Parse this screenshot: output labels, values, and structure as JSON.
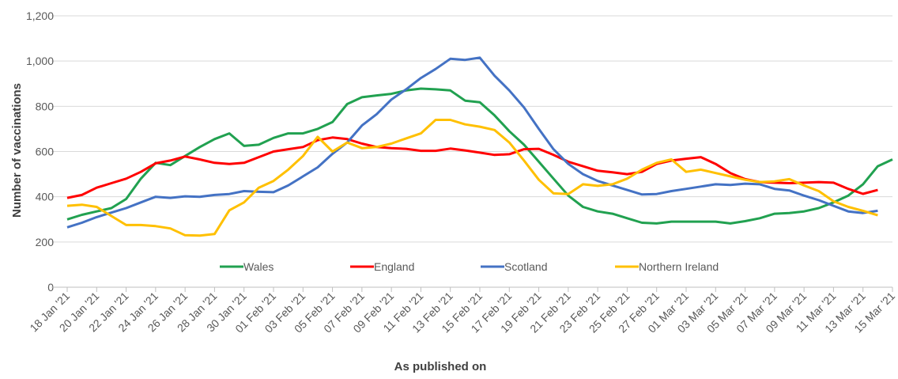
{
  "chart_data": {
    "type": "line",
    "y_label": "Number of vaccinations",
    "x_label": "As published  on",
    "categories": [
      "18 Jan '21",
      null,
      "20 Jan '21",
      null,
      "22 Jan '21",
      null,
      "24 Jan '21",
      null,
      "26 Jan '21",
      null,
      "28 Jan '21",
      null,
      "30 Jan '21",
      null,
      "01 Feb '21",
      null,
      "03 Feb '21",
      null,
      "05 Feb '21",
      null,
      "07 Feb '21",
      null,
      "09 Feb '21",
      null,
      "11 Feb '21",
      null,
      "13 Feb '21",
      null,
      "15 Feb '21",
      null,
      "17 Feb '21",
      null,
      "19 Feb '21",
      null,
      "21 Feb '21",
      null,
      "23 Feb '21",
      null,
      "25 Feb '21",
      null,
      "27 Feb '21",
      null,
      "01 Mar '21",
      null,
      "03 Mar '21",
      null,
      "05 Mar '21",
      null,
      "07 Mar '21",
      null,
      "09 Mar '21",
      null,
      "11 Mar '21",
      null,
      "13 Mar '21",
      null,
      "15 Mar '21"
    ],
    "series": [
      {
        "name": "Wales",
        "color": "#21a150",
        "values": [
          300,
          320,
          335,
          350,
          390,
          480,
          550,
          540,
          580,
          620,
          655,
          680,
          625,
          630,
          660,
          680,
          680,
          700,
          730,
          810,
          840,
          848,
          855,
          870,
          878,
          875,
          870,
          825,
          818,
          760,
          690,
          630,
          555,
          480,
          405,
          355,
          335,
          325,
          305,
          285,
          282,
          290,
          290,
          290,
          290,
          282,
          292,
          305,
          325,
          328,
          335,
          350,
          375,
          405,
          455,
          535,
          565
        ]
      },
      {
        "name": "England",
        "color": "#ff0000",
        "values": [
          395,
          408,
          440,
          460,
          480,
          510,
          548,
          560,
          578,
          565,
          550,
          545,
          550,
          575,
          600,
          610,
          620,
          650,
          662,
          655,
          635,
          620,
          615,
          612,
          603,
          603,
          613,
          605,
          595,
          585,
          588,
          610,
          612,
          585,
          555,
          535,
          515,
          508,
          500,
          510,
          545,
          560,
          568,
          575,
          545,
          505,
          478,
          465,
          462,
          460,
          462,
          465,
          462,
          435,
          413,
          430,
          null
        ]
      },
      {
        "name": "Scotland",
        "color": "#4472c4",
        "values": [
          265,
          285,
          310,
          330,
          350,
          375,
          400,
          395,
          402,
          400,
          408,
          412,
          425,
          422,
          420,
          450,
          490,
          530,
          590,
          640,
          715,
          765,
          830,
          875,
          925,
          965,
          1010,
          1005,
          1015,
          935,
          870,
          795,
          700,
          610,
          545,
          500,
          470,
          450,
          430,
          410,
          412,
          425,
          435,
          445,
          455,
          452,
          458,
          455,
          435,
          428,
          405,
          385,
          360,
          335,
          328,
          338,
          null
        ]
      },
      {
        "name": "Northern Ireland",
        "color": "#ffc000",
        "values": [
          360,
          365,
          355,
          315,
          275,
          275,
          270,
          260,
          230,
          228,
          235,
          340,
          375,
          440,
          470,
          520,
          580,
          665,
          600,
          640,
          615,
          620,
          635,
          658,
          680,
          740,
          740,
          720,
          710,
          695,
          640,
          560,
          475,
          415,
          412,
          455,
          448,
          455,
          480,
          520,
          550,
          565,
          510,
          520,
          505,
          490,
          475,
          465,
          468,
          478,
          450,
          425,
          380,
          355,
          338,
          318,
          null
        ]
      }
    ],
    "ylim": [
      0,
      1200
    ],
    "yticks": [
      0,
      200,
      400,
      600,
      800,
      {
        "value": 1000,
        "label": "1,000"
      },
      {
        "value": 1200,
        "label": "1,200"
      }
    ],
    "grid": true
  }
}
